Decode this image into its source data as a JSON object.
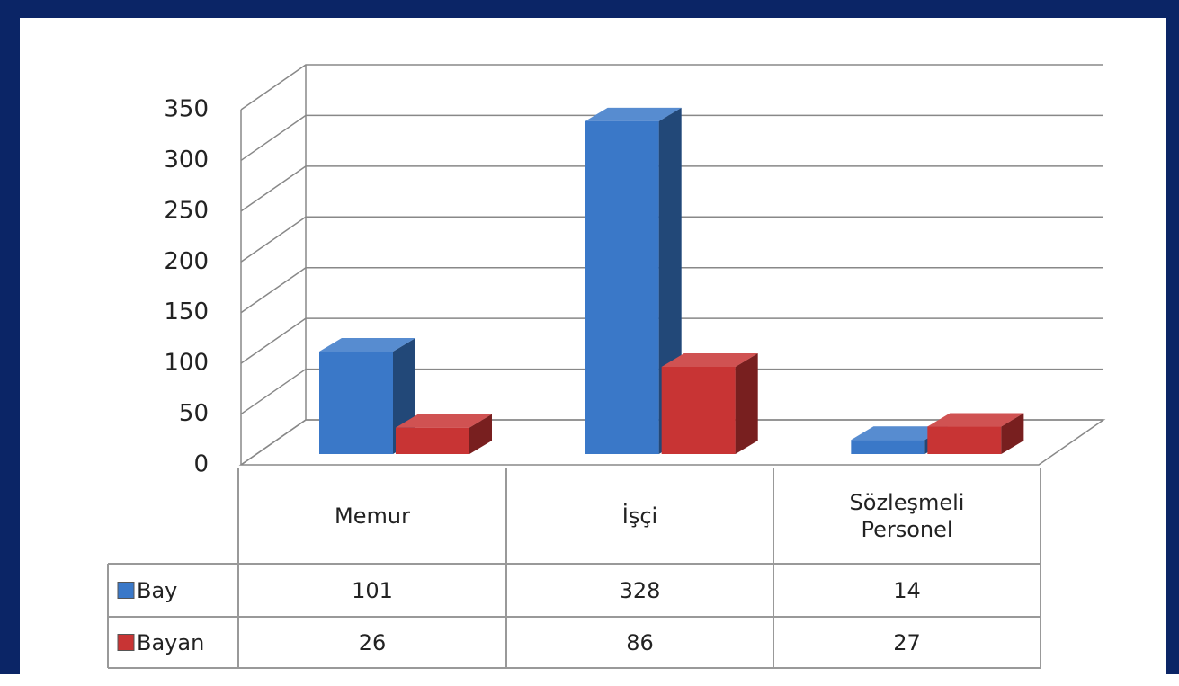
{
  "chart_data": {
    "type": "bar",
    "categories": [
      "Memur",
      "İşçi",
      "Sözleşmeli Personel"
    ],
    "series": [
      {
        "name": "Bay",
        "color": "#3a78c8",
        "values": [
          101,
          328,
          14
        ]
      },
      {
        "name": "Bayan",
        "color": "#c83434",
        "values": [
          26,
          86,
          27
        ]
      }
    ],
    "ylim": [
      0,
      350
    ],
    "yticks": [
      0,
      50,
      100,
      150,
      200,
      250,
      300,
      350
    ],
    "grid": true
  }
}
